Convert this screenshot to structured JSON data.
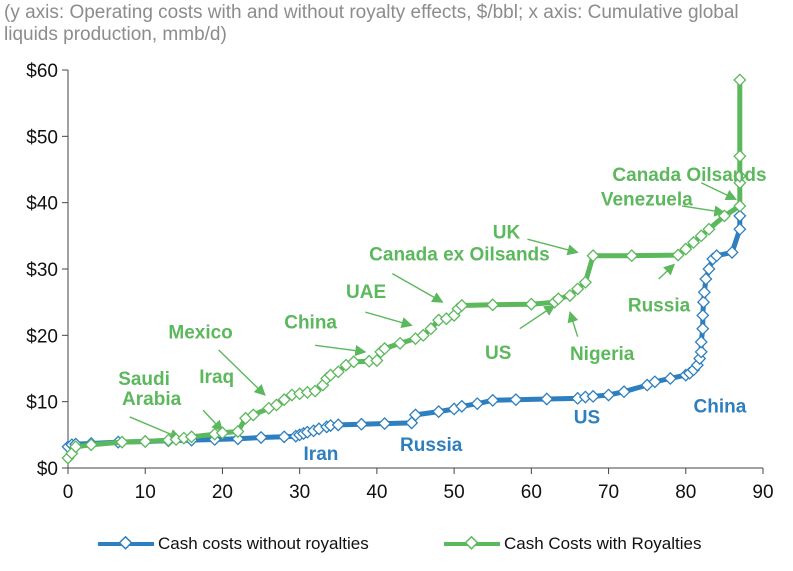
{
  "subtitle": "(y axis: Operating costs with and without royalty effects, $/bbl; x axis: Cumulative global liquids production, mmb/d)",
  "colors": {
    "blue": "#2e7fbf",
    "green": "#5cb85c",
    "axis": "#444444"
  },
  "chart_data": {
    "type": "line",
    "xlim": [
      0,
      90
    ],
    "ylim": [
      0,
      60
    ],
    "x_ticks": [
      0,
      10,
      20,
      30,
      40,
      50,
      60,
      70,
      80,
      90
    ],
    "y_ticks": [
      0,
      10,
      20,
      30,
      40,
      50,
      60
    ],
    "y_tick_labels": [
      "$0",
      "$10",
      "$20",
      "$30",
      "$40",
      "$50",
      "$60"
    ],
    "grid": false,
    "legend_position": "bottom",
    "series": [
      {
        "name": "Cash costs without royalties",
        "color": "#2e7fbf",
        "points": [
          [
            0,
            3.2
          ],
          [
            0.5,
            3.5
          ],
          [
            1,
            3.6
          ],
          [
            3,
            3.7
          ],
          [
            6.5,
            3.9
          ],
          [
            10,
            4.0
          ],
          [
            13,
            4.1
          ],
          [
            16,
            4.2
          ],
          [
            19,
            4.3
          ],
          [
            22,
            4.4
          ],
          [
            25,
            4.6
          ],
          [
            28,
            4.7
          ],
          [
            29.5,
            4.8
          ],
          [
            30,
            5.0
          ],
          [
            30.5,
            5.2
          ],
          [
            31,
            5.4
          ],
          [
            31.8,
            5.6
          ],
          [
            32.5,
            5.9
          ],
          [
            33.5,
            6.2
          ],
          [
            34,
            6.4
          ],
          [
            35,
            6.5
          ],
          [
            38,
            6.6
          ],
          [
            41,
            6.7
          ],
          [
            44.5,
            6.8
          ],
          [
            45,
            8.0
          ],
          [
            48,
            8.5
          ],
          [
            50,
            8.9
          ],
          [
            51,
            9.3
          ],
          [
            53,
            9.7
          ],
          [
            55,
            10.2
          ],
          [
            58,
            10.3
          ],
          [
            62,
            10.4
          ],
          [
            66,
            10.5
          ],
          [
            67,
            10.7
          ],
          [
            68,
            10.8
          ],
          [
            70,
            11.0
          ],
          [
            72,
            11.5
          ],
          [
            75,
            12.5
          ],
          [
            76,
            13.0
          ],
          [
            78,
            13.5
          ],
          [
            80,
            14.0
          ],
          [
            80.5,
            14.3
          ],
          [
            81,
            14.8
          ],
          [
            81.5,
            15.5
          ],
          [
            81.8,
            16.5
          ],
          [
            82,
            17.5
          ],
          [
            82,
            19
          ],
          [
            82.2,
            21
          ],
          [
            82.2,
            23
          ],
          [
            82.3,
            25
          ],
          [
            82.4,
            26.5
          ],
          [
            82.6,
            28.5
          ],
          [
            83,
            30
          ],
          [
            83.5,
            31.5
          ],
          [
            84,
            32
          ],
          [
            86,
            32.5
          ],
          [
            87,
            36
          ],
          [
            87,
            38
          ]
        ]
      },
      {
        "name": "Cash Costs with Royalties",
        "color": "#5cb85c",
        "points": [
          [
            0,
            1.5
          ],
          [
            0.5,
            2.2
          ],
          [
            1,
            3.2
          ],
          [
            3,
            3.5
          ],
          [
            7,
            3.9
          ],
          [
            10,
            4.0
          ],
          [
            13,
            4.2
          ],
          [
            14,
            4.3
          ],
          [
            15,
            4.5
          ],
          [
            16,
            4.7
          ],
          [
            19,
            5.1
          ],
          [
            20,
            5.3
          ],
          [
            22,
            5.5
          ],
          [
            23,
            7.5
          ],
          [
            24,
            8.0
          ],
          [
            26,
            9.0
          ],
          [
            27,
            9.5
          ],
          [
            28,
            10.3
          ],
          [
            29,
            11.0
          ],
          [
            30,
            11.2
          ],
          [
            31,
            11.4
          ],
          [
            32,
            11.6
          ],
          [
            33,
            12.5
          ],
          [
            33.5,
            13.5
          ],
          [
            34,
            14.0
          ],
          [
            35,
            14.5
          ],
          [
            36,
            15.5
          ],
          [
            37,
            16.0
          ],
          [
            39,
            16.1
          ],
          [
            40,
            16.2
          ],
          [
            40.5,
            17.5
          ],
          [
            41,
            18.0
          ],
          [
            43,
            18.8
          ],
          [
            45,
            19.5
          ],
          [
            46,
            20.0
          ],
          [
            47,
            21.0
          ],
          [
            48,
            22.3
          ],
          [
            49,
            22.5
          ],
          [
            50,
            23.0
          ],
          [
            50.5,
            24.0
          ],
          [
            51,
            24.5
          ],
          [
            55,
            24.6
          ],
          [
            60,
            24.7
          ],
          [
            63,
            25.0
          ],
          [
            63.5,
            25.5
          ],
          [
            65,
            26.0
          ],
          [
            66,
            27.0
          ],
          [
            67,
            28.0
          ],
          [
            68,
            32.0
          ],
          [
            73,
            32.0
          ],
          [
            79,
            32.1
          ],
          [
            80,
            33
          ],
          [
            81,
            34
          ],
          [
            82,
            35
          ],
          [
            83,
            36
          ],
          [
            85,
            38
          ],
          [
            87,
            39.5
          ],
          [
            87,
            43
          ],
          [
            87,
            44
          ],
          [
            87,
            47
          ],
          [
            87,
            58.5
          ]
        ]
      }
    ],
    "annotations": [
      {
        "text": "Saudi",
        "series": "Cash Costs with Royalties",
        "x": 6.5,
        "y": 12.5
      },
      {
        "text": "Arabia",
        "series": "Cash Costs with Royalties",
        "x": 7,
        "y": 9.5
      },
      {
        "text": "Iraq",
        "series": "Cash Costs with Royalties",
        "x": 17,
        "y": 12.8
      },
      {
        "text": "Mexico",
        "series": "Cash Costs with Royalties",
        "x": 13,
        "y": 19.5
      },
      {
        "text": "China",
        "series": "Cash Costs with Royalties",
        "x": 28,
        "y": 21
      },
      {
        "text": "UAE",
        "series": "Cash Costs with Royalties",
        "x": 36,
        "y": 25.6
      },
      {
        "text": "Canada ex Oilsands",
        "series": "Cash Costs with Royalties",
        "x": 39,
        "y": 31.3
      },
      {
        "text": "UK",
        "series": "Cash Costs with Royalties",
        "x": 55,
        "y": 34.6
      },
      {
        "text": "US",
        "series": "Cash Costs with Royalties",
        "x": 54,
        "y": 16.4
      },
      {
        "text": "Nigeria",
        "series": "Cash Costs with Royalties",
        "x": 65,
        "y": 16.3
      },
      {
        "text": "Russia",
        "series": "Cash Costs with Royalties",
        "x": 72.5,
        "y": 23.6
      },
      {
        "text": "Venezuela",
        "series": "Cash Costs with Royalties",
        "x": 69,
        "y": 39.6
      },
      {
        "text": "Canada Oilsands",
        "series": "Cash Costs with Royalties",
        "x": 70.5,
        "y": 43.3
      },
      {
        "text": "Iran",
        "series": "Cash costs without royalties",
        "x": 30.5,
        "y": 1.2
      },
      {
        "text": "Russia",
        "series": "Cash costs without royalties",
        "x": 43,
        "y": 2.6
      },
      {
        "text": "US",
        "series": "Cash costs without royalties",
        "x": 65.5,
        "y": 6.7
      },
      {
        "text": "China",
        "series": "Cash costs without royalties",
        "x": 81,
        "y": 8.4
      }
    ],
    "arrows": [
      {
        "from": [
          8,
          7.7
        ],
        "to": [
          14.5,
          4.5
        ]
      },
      {
        "from": [
          17.5,
          8.7
        ],
        "to": [
          20,
          5.6
        ]
      },
      {
        "from": [
          19.5,
          17.8
        ],
        "to": [
          25.5,
          11
        ]
      },
      {
        "from": [
          32,
          18.5
        ],
        "to": [
          38.5,
          17.5
        ]
      },
      {
        "from": [
          38.5,
          23.5
        ],
        "to": [
          44.5,
          21.5
        ]
      },
      {
        "from": [
          42,
          29.3
        ],
        "to": [
          48.5,
          25
        ]
      },
      {
        "from": [
          59.5,
          34.5
        ],
        "to": [
          66,
          32.5
        ]
      },
      {
        "from": [
          58.5,
          21
        ],
        "to": [
          63,
          24.5
        ]
      },
      {
        "from": [
          66,
          19.8
        ],
        "to": [
          65,
          23.5
        ]
      },
      {
        "from": [
          76.5,
          28.5
        ],
        "to": [
          78.5,
          30.7
        ]
      },
      {
        "from": [
          79.5,
          39.5
        ],
        "to": [
          85,
          38.5
        ]
      },
      {
        "from": [
          82,
          43
        ],
        "to": [
          86.5,
          40.5
        ]
      }
    ]
  },
  "legend": {
    "items": [
      {
        "label": "Cash costs without royalties"
      },
      {
        "label": "Cash Costs with Royalties"
      }
    ]
  }
}
